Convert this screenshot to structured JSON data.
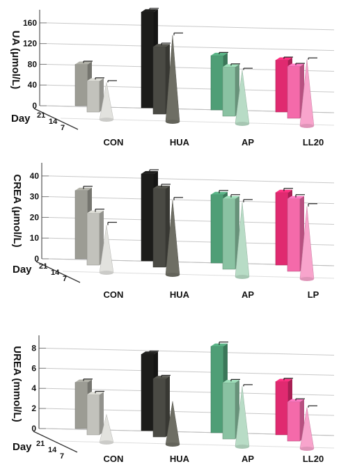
{
  "chart_data": [
    {
      "type": "bar",
      "ylabel": "UA (μmol/L)",
      "depth_label": "Day",
      "depth_ticks": [
        "21",
        "14",
        "7"
      ],
      "categories": [
        "CON",
        "HUA",
        "AP",
        "LL20"
      ],
      "yticks": [
        0,
        40,
        80,
        120,
        160
      ],
      "ylim": [
        0,
        180
      ],
      "series": [
        {
          "day": "21",
          "values": [
            80,
            185,
            105,
            100
          ],
          "errors": [
            2,
            3,
            2,
            2
          ]
        },
        {
          "day": "14",
          "values": [
            60,
            130,
            95,
            100
          ],
          "errors": [
            2,
            3,
            2,
            2
          ]
        },
        {
          "day": "7",
          "values": [
            72,
            167,
            104,
            128
          ],
          "errors": [
            2,
            3,
            2,
            2
          ]
        }
      ]
    },
    {
      "type": "bar",
      "ylabel": "CREA (μmol/L)",
      "depth_label": "Day",
      "depth_ticks": [
        "21",
        "14",
        "7"
      ],
      "categories": [
        "CON",
        "HUA",
        "AP",
        "LP"
      ],
      "yticks": [
        0,
        10,
        20,
        30,
        40
      ],
      "ylim": [
        0,
        45
      ],
      "series": [
        {
          "day": "21",
          "values": [
            33,
            42,
            33,
            35
          ],
          "errors": [
            1,
            1,
            1,
            1
          ]
        },
        {
          "day": "14",
          "values": [
            25,
            38,
            34,
            35
          ],
          "errors": [
            1,
            1,
            1,
            1
          ]
        },
        {
          "day": "7",
          "values": [
            23,
            36,
            36,
            35
          ],
          "errors": [
            1,
            1,
            1,
            1
          ]
        }
      ]
    },
    {
      "type": "bar",
      "ylabel": "UREA (mmol/L)",
      "depth_label": "Day",
      "depth_ticks": [
        "21",
        "14",
        "7"
      ],
      "categories": [
        "CON",
        "HUA",
        "AP",
        "LL20"
      ],
      "yticks": [
        0,
        2,
        4,
        6,
        8
      ],
      "ylim": [
        0,
        9
      ],
      "series": [
        {
          "day": "21",
          "values": [
            4.6,
            7.6,
            8.6,
            5.3
          ],
          "errors": [
            0.12,
            0.12,
            0.22,
            0.12
          ]
        },
        {
          "day": "14",
          "values": [
            4.0,
            5.8,
            5.6,
            3.9
          ],
          "errors": [
            0.12,
            0.12,
            0.12,
            0.1
          ]
        },
        {
          "day": "7",
          "values": [
            2.8,
            4.3,
            6.0,
            4.1
          ],
          "errors": [
            0,
            0,
            0.1,
            0.1
          ]
        }
      ]
    }
  ],
  "colors": {
    "CON": [
      "#9c9c94",
      "#c2c2bc",
      "#e2e2de"
    ],
    "HUA": [
      "#1c1c1a",
      "#4a4a44",
      "#6e6e64"
    ],
    "AP": [
      "#4f9e76",
      "#8ac2a2",
      "#b8dcc6"
    ],
    "LP": [
      "#e02a70",
      "#f46aaa",
      "#f8a4cc"
    ],
    "LL20": [
      "#e02a70",
      "#f46aaa",
      "#f8a4cc"
    ]
  }
}
